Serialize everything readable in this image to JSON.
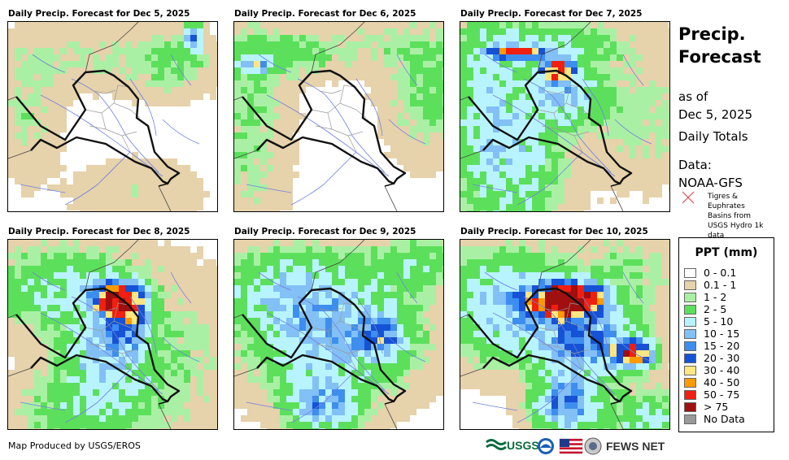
{
  "panels": [
    {
      "title": "Daily Precip. Forecast for Dec 5, 2025"
    },
    {
      "title": "Daily Precip. Forecast for Dec 6, 2025"
    },
    {
      "title": "Daily Precip. Forecast for Dec 7, 2025"
    },
    {
      "title": "Daily Precip. Forecast for Dec 8, 2025"
    },
    {
      "title": "Daily Precip. Forecast for Dec 9, 2025"
    },
    {
      "title": "Daily Precip. Forecast for Dec 10, 2025"
    }
  ],
  "sidebar": {
    "title_line1": "Precip.",
    "title_line2": "Forecast",
    "as_of": "as of",
    "date": "Dec 5, 2025",
    "totals": "Daily Totals",
    "data_label": "Data:",
    "source": "NOAA-GFS",
    "basin_note": "Tigres & Euphrates Basins from USGS Hydro 1k data"
  },
  "legend": {
    "title": "PPT (mm)",
    "items": [
      {
        "label": "0 - 0.1",
        "color": "#ffffff"
      },
      {
        "label": "0.1 - 1",
        "color": "#e6d2ab"
      },
      {
        "label": "1 - 2",
        "color": "#aaf0a4"
      },
      {
        "label": "2 - 5",
        "color": "#5ce05c"
      },
      {
        "label": "5 - 10",
        "color": "#b8f4ff"
      },
      {
        "label": "10 - 15",
        "color": "#82c0f5"
      },
      {
        "label": "15 - 20",
        "color": "#3d8eef"
      },
      {
        "label": "20 - 30",
        "color": "#1652d6"
      },
      {
        "label": "30 - 40",
        "color": "#ffe680"
      },
      {
        "label": "40 - 50",
        "color": "#ff9a00"
      },
      {
        "label": "50 - 75",
        "color": "#f01f0f"
      },
      {
        "label": "> 75",
        "color": "#a01010"
      },
      {
        "label": "No Data",
        "color": "#999999"
      }
    ]
  },
  "footer": {
    "credit": "Map Produced by USGS/EROS"
  },
  "logos": {
    "usgs": "USGS",
    "fews": "FEWS NET"
  }
}
